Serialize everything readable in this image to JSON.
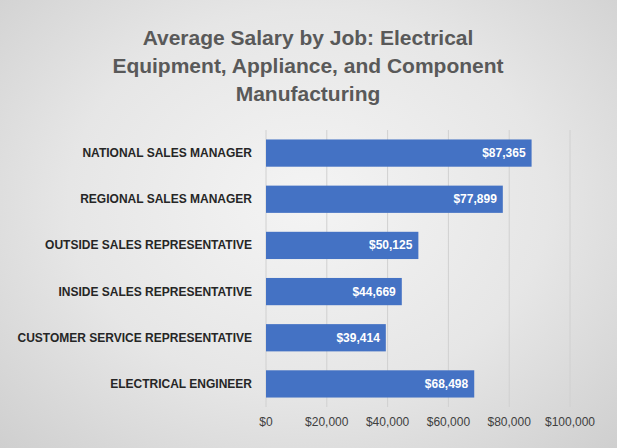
{
  "chart_data": {
    "type": "bar",
    "orientation": "horizontal",
    "title": "Average Salary by Job: Electrical Equipment, Appliance, and Component Manufacturing",
    "categories": [
      "NATIONAL SALES MANAGER",
      "REGIONAL SALES MANAGER",
      "OUTSIDE SALES REPRESENTATIVE",
      "INSIDE SALES REPRESENTATIVE",
      "CUSTOMER SERVICE REPRESENTATIVE",
      "ELECTRICAL ENGINEER"
    ],
    "values": [
      87365,
      77899,
      50125,
      44669,
      39414,
      68498
    ],
    "value_labels": [
      "$87,365",
      "$77,899",
      "$50,125",
      "$44,669",
      "$39,414",
      "$68,498"
    ],
    "color": "#4472c4",
    "xlim": [
      0,
      100000
    ],
    "xticks": [
      {
        "value": 0,
        "label": "$0"
      },
      {
        "value": 20000,
        "label": "$20,000"
      },
      {
        "value": 40000,
        "label": "$40,000"
      },
      {
        "value": 60000,
        "label": "$60,000"
      },
      {
        "value": 80000,
        "label": "$80,000"
      },
      {
        "value": 100000,
        "label": "$100,000"
      }
    ],
    "grid": true,
    "data_labels": true
  }
}
